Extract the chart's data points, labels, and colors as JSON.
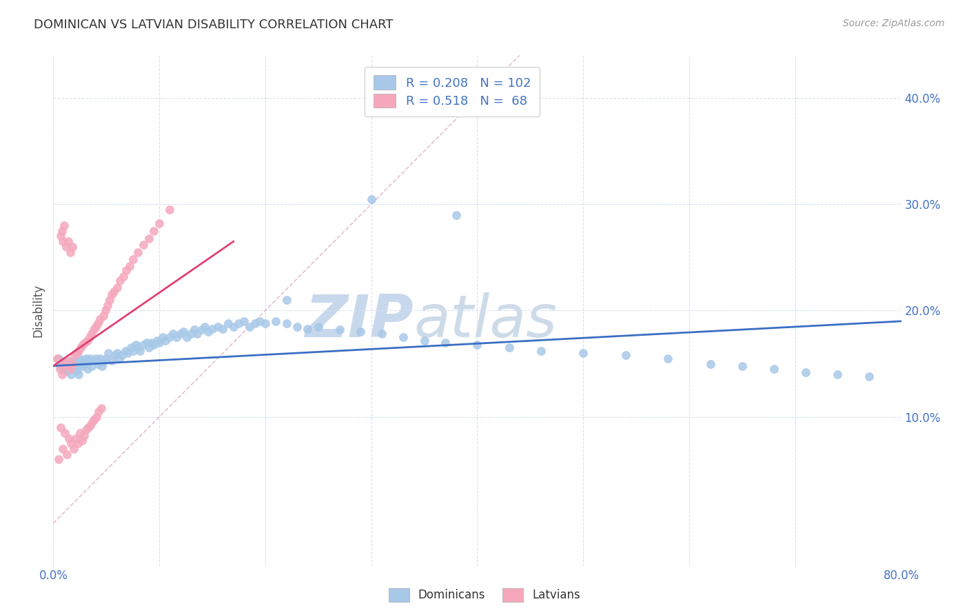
{
  "title": "DOMINICAN VS LATVIAN DISABILITY CORRELATION CHART",
  "source": "Source: ZipAtlas.com",
  "ylabel": "Disability",
  "xlim": [
    0.0,
    0.8
  ],
  "ylim": [
    -0.04,
    0.44
  ],
  "xtick_vals": [
    0.0,
    0.1,
    0.2,
    0.3,
    0.4,
    0.5,
    0.6,
    0.7,
    0.8
  ],
  "xtick_labels": [
    "0.0%",
    "",
    "",
    "",
    "",
    "",
    "",
    "",
    "80.0%"
  ],
  "ytick_vals": [
    0.1,
    0.2,
    0.3,
    0.4
  ],
  "ytick_labels": [
    "10.0%",
    "20.0%",
    "30.0%",
    "40.0%"
  ],
  "dominican_R": 0.208,
  "dominican_N": 102,
  "latvian_R": 0.518,
  "latvian_N": 68,
  "dominican_color": "#a8c8e8",
  "latvian_color": "#f5a8bc",
  "dominican_line_color": "#3a6fc4",
  "latvian_line_color": "#e04070",
  "diagonal_color": "#e0b8c8",
  "tick_color": "#4472c4",
  "watermark_zip": "ZIP",
  "watermark_atlas": "atlas",
  "watermark_color": "#c8d8ec",
  "grid_color": "#d8e0f0",
  "legend_dom_label": "R = 0.208   N = 102",
  "legend_lat_label": "R = 0.518   N =  68",
  "bottom_legend_dom": "Dominicans",
  "bottom_legend_lat": "Latvians",
  "dom_x": [
    0.005,
    0.007,
    0.008,
    0.01,
    0.012,
    0.013,
    0.015,
    0.016,
    0.017,
    0.018,
    0.02,
    0.021,
    0.022,
    0.023,
    0.024,
    0.025,
    0.027,
    0.028,
    0.03,
    0.031,
    0.032,
    0.033,
    0.035,
    0.036,
    0.038,
    0.04,
    0.042,
    0.044,
    0.046,
    0.048,
    0.05,
    0.052,
    0.055,
    0.058,
    0.06,
    0.062,
    0.065,
    0.068,
    0.07,
    0.073,
    0.075,
    0.078,
    0.08,
    0.082,
    0.085,
    0.088,
    0.09,
    0.093,
    0.095,
    0.098,
    0.1,
    0.103,
    0.106,
    0.11,
    0.113,
    0.116,
    0.12,
    0.123,
    0.126,
    0.13,
    0.133,
    0.136,
    0.14,
    0.143,
    0.146,
    0.15,
    0.155,
    0.16,
    0.165,
    0.17,
    0.175,
    0.18,
    0.185,
    0.19,
    0.195,
    0.2,
    0.21,
    0.22,
    0.23,
    0.24,
    0.25,
    0.27,
    0.29,
    0.31,
    0.33,
    0.35,
    0.37,
    0.4,
    0.43,
    0.46,
    0.5,
    0.54,
    0.58,
    0.62,
    0.65,
    0.68,
    0.71,
    0.74,
    0.77,
    0.22,
    0.3,
    0.38
  ],
  "dom_y": [
    0.155,
    0.148,
    0.152,
    0.145,
    0.15,
    0.143,
    0.148,
    0.152,
    0.14,
    0.145,
    0.15,
    0.155,
    0.143,
    0.148,
    0.14,
    0.155,
    0.148,
    0.152,
    0.15,
    0.155,
    0.145,
    0.152,
    0.155,
    0.148,
    0.153,
    0.155,
    0.15,
    0.155,
    0.148,
    0.152,
    0.155,
    0.16,
    0.153,
    0.158,
    0.16,
    0.155,
    0.158,
    0.162,
    0.16,
    0.165,
    0.162,
    0.168,
    0.165,
    0.162,
    0.168,
    0.17,
    0.165,
    0.17,
    0.168,
    0.172,
    0.17,
    0.175,
    0.172,
    0.175,
    0.178,
    0.175,
    0.178,
    0.18,
    0.175,
    0.178,
    0.182,
    0.178,
    0.182,
    0.185,
    0.18,
    0.183,
    0.185,
    0.183,
    0.188,
    0.185,
    0.188,
    0.19,
    0.185,
    0.188,
    0.19,
    0.188,
    0.19,
    0.188,
    0.185,
    0.183,
    0.185,
    0.182,
    0.18,
    0.178,
    0.175,
    0.172,
    0.17,
    0.168,
    0.165,
    0.162,
    0.16,
    0.158,
    0.155,
    0.15,
    0.148,
    0.145,
    0.142,
    0.14,
    0.138,
    0.21,
    0.305,
    0.29
  ],
  "lat_x": [
    0.004,
    0.005,
    0.006,
    0.007,
    0.008,
    0.009,
    0.01,
    0.011,
    0.012,
    0.013,
    0.014,
    0.015,
    0.016,
    0.017,
    0.018,
    0.019,
    0.02,
    0.021,
    0.022,
    0.023,
    0.024,
    0.025,
    0.026,
    0.027,
    0.028,
    0.029,
    0.03,
    0.031,
    0.032,
    0.033,
    0.034,
    0.035,
    0.036,
    0.037,
    0.038,
    0.039,
    0.04,
    0.041,
    0.042,
    0.043,
    0.044,
    0.045,
    0.047,
    0.049,
    0.051,
    0.053,
    0.055,
    0.057,
    0.06,
    0.063,
    0.066,
    0.069,
    0.072,
    0.075,
    0.08,
    0.085,
    0.09,
    0.095,
    0.1,
    0.11,
    0.007,
    0.008,
    0.009,
    0.01,
    0.012,
    0.014,
    0.016,
    0.018
  ],
  "lat_y": [
    0.155,
    0.06,
    0.145,
    0.09,
    0.14,
    0.07,
    0.15,
    0.085,
    0.148,
    0.065,
    0.152,
    0.08,
    0.145,
    0.075,
    0.15,
    0.07,
    0.158,
    0.08,
    0.16,
    0.075,
    0.162,
    0.085,
    0.165,
    0.078,
    0.168,
    0.082,
    0.17,
    0.088,
    0.172,
    0.09,
    0.175,
    0.092,
    0.178,
    0.095,
    0.182,
    0.098,
    0.185,
    0.1,
    0.188,
    0.105,
    0.192,
    0.108,
    0.195,
    0.2,
    0.205,
    0.21,
    0.215,
    0.218,
    0.222,
    0.228,
    0.232,
    0.238,
    0.242,
    0.248,
    0.255,
    0.262,
    0.268,
    0.275,
    0.282,
    0.295,
    0.27,
    0.275,
    0.265,
    0.28,
    0.26,
    0.265,
    0.255,
    0.26
  ]
}
